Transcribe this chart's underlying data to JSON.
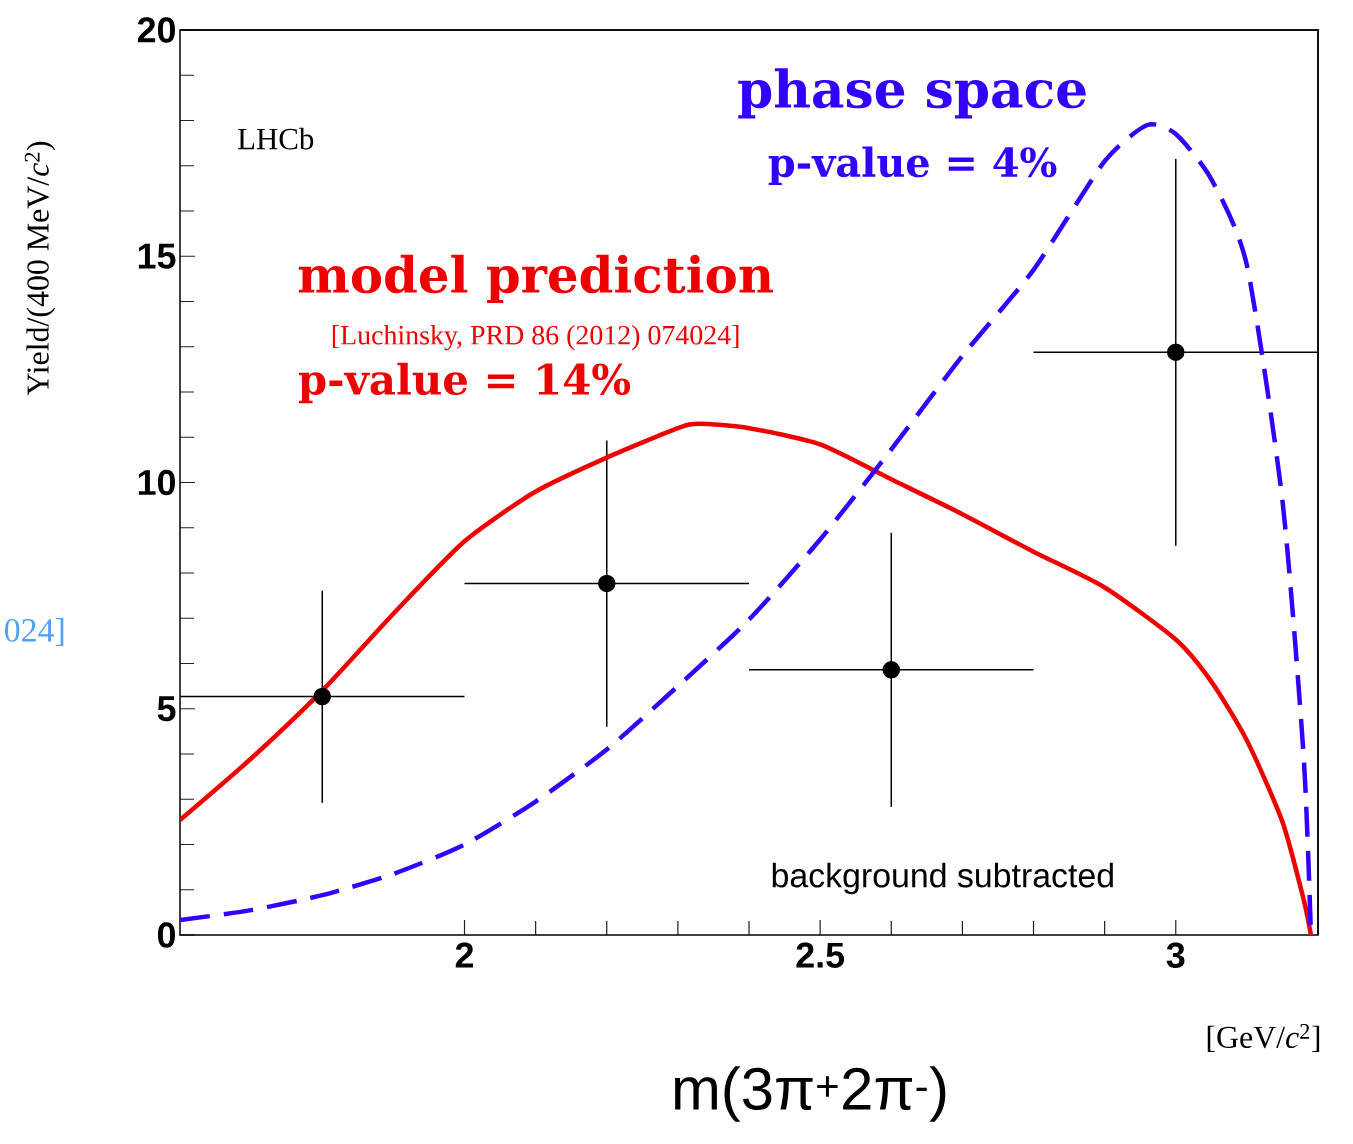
{
  "chart_data": {
    "type": "line",
    "xlabel": "[GeV/*c*$^{2}$]",
    "ylabel": "Yield/(400 MeV/*c*$^{2}$)",
    "xlim": [
      1.6,
      3.2
    ],
    "ylim": [
      0,
      20
    ],
    "xticks": [
      2,
      2.5,
      3
    ],
    "yticks": [
      0,
      5,
      10,
      15,
      20
    ],
    "series": [
      {
        "type": "scatter",
        "color": "#000000",
        "x": [
          1.8,
          2.2,
          2.6,
          3.0
        ],
        "values": [
          5.27,
          7.77,
          5.86,
          12.88
        ],
        "errors": [
          [
            2.92,
            7.61
          ],
          [
            4.6,
            10.93
          ],
          [
            2.83,
            8.89
          ],
          [
            8.6,
            17.15
          ]
        ],
        "xerrors": [
          0.2,
          0.2,
          0.2,
          0.2
        ]
      },
      {
        "type": "line",
        "name": "model prediction",
        "color": "#ee0000",
        "line_style": "solid",
        "x": [
          1.6,
          1.7,
          1.8,
          1.9,
          2.0,
          2.1,
          2.2,
          2.3,
          2.33,
          2.4,
          2.5,
          2.6,
          2.7,
          2.8,
          2.9,
          3.0,
          3.05,
          3.1,
          3.15,
          3.18,
          3.19
        ],
        "values": [
          2.54,
          3.9,
          5.4,
          7.1,
          8.7,
          9.8,
          10.55,
          11.2,
          11.3,
          11.2,
          10.84,
          10.07,
          9.3,
          8.47,
          7.68,
          6.53,
          5.6,
          4.3,
          2.5,
          0.77,
          0
        ]
      },
      {
        "type": "line",
        "name": "phase space",
        "color": "#3300ff",
        "line_style": "dashed",
        "x": [
          1.6,
          1.7,
          1.8,
          1.9,
          2.0,
          2.1,
          2.2,
          2.3,
          2.4,
          2.5,
          2.6,
          2.7,
          2.8,
          2.9,
          2.96,
          3.0,
          3.05,
          3.1,
          3.15,
          3.18,
          3.19
        ],
        "values": [
          0.33,
          0.55,
          0.88,
          1.35,
          2.0,
          2.95,
          4.1,
          5.5,
          6.97,
          8.74,
          10.73,
          12.8,
          14.7,
          17.1,
          17.9,
          17.7,
          16.7,
          14.8,
          9.6,
          3.9,
          0
        ]
      }
    ],
    "annotations": [
      "LHCb",
      "[Luchinsky, PRD 86 (2012) 074024]",
      "p-value = 14%",
      "p-value = 4%",
      "background subtracted",
      "m(3π$^{+}$2π$^{-}$)",
      "024]"
    ]
  }
}
